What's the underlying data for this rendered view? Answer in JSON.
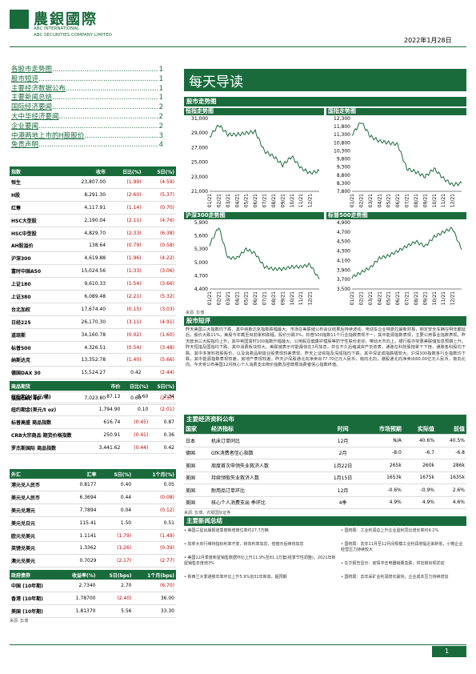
{
  "header": {
    "logo_cn": "農銀國際",
    "logo_en1": "ABC INTERNATIONAL",
    "logo_en2": "ABC SECURITIES COMPANY LIMITED",
    "date": "2022年1月28日"
  },
  "toc": [
    {
      "label": "各股市走势图",
      "page": "1"
    },
    {
      "label": "股市短评",
      "page": "1"
    },
    {
      "label": "主要经济数据公布",
      "page": "1"
    },
    {
      "label": "主要新闻总结",
      "page": "1"
    },
    {
      "label": "国际经济要闻",
      "page": "2"
    },
    {
      "label": "大中华经济要闻",
      "page": "2"
    },
    {
      "label": "企业要闻",
      "page": "2"
    },
    {
      "label": "中港两地上市的H股股价",
      "page": "3"
    },
    {
      "label": "免责声明",
      "page": "4"
    }
  ],
  "index_table": {
    "headers": [
      "指数",
      "收市",
      "日比(%)",
      "5日(%)"
    ],
    "rows": [
      [
        "恒生",
        "23,807.00",
        "(1.99)",
        "(4.59)"
      ],
      [
        "H股",
        "8,291.30",
        "(2.60)",
        "(5.37)"
      ],
      [
        "红筹",
        "4,117.91",
        "(1.14)",
        "(0.70)"
      ],
      [
        "HSC大型股",
        "2,190.04",
        "(2.11)",
        "(4.76)"
      ],
      [
        "HSC中型股",
        "4,829.70",
        "(2.33)",
        "(6.38)"
      ],
      [
        "AH股溢价",
        "138.64",
        "(0.79)",
        "(0.58)"
      ],
      [
        "沪深300",
        "4,619.88",
        "(1.96)",
        "(4.22)"
      ],
      [
        "富时中国A50",
        "15,024.56",
        "(1.33)",
        "(3.06)"
      ],
      [
        "上证180",
        "9,610.33",
        "(1.54)",
        "(3.66)"
      ],
      [
        "上证380",
        "6,089.48",
        "(2.21)",
        "(5.32)"
      ],
      [
        "台北加权",
        "17,674.40",
        "(0.15)",
        "(3.03)"
      ],
      [
        "日经225",
        "26,170.30",
        "(3.11)",
        "(4.91)"
      ],
      [
        "道琼斯",
        "34,160.78",
        "(0.02)",
        "(1.60)"
      ],
      [
        "标普500",
        "4,326.51",
        "(0.54)",
        "(3.48)"
      ],
      [
        "纳斯达克",
        "13,352.78",
        "(1.40)",
        "(5.66)"
      ],
      [
        "德国DAX 30",
        "15,524.27",
        "0.42",
        "(2.44)"
      ],
      [
        "富时100",
        "7,554.31",
        "1.13",
        "(0.40)"
      ],
      [
        "法国CAC 40",
        "7,023.80",
        "0.60",
        "(2.37)"
      ]
    ]
  },
  "commodity_table": {
    "headers": [
      "商品期货",
      "市价",
      "日比(%)",
      "5日(%)"
    ],
    "rows": [
      [
        "纽约期油(美元/桶)",
        "87.13",
        "0.60",
        "2.34"
      ],
      [
        "纽约期金(美元/t oz)",
        "1,794.90",
        "0.10",
        "(2.01)"
      ],
      [
        "标普高盛 商品指数",
        "616.74",
        "(0.45)",
        "0.87"
      ],
      [
        "CRB大宗商品 期货价格指数",
        "250.91",
        "(0.41)",
        "0.36"
      ],
      [
        "罗杰斯国际 商品指数",
        "3,441.62",
        "(0.44)",
        "0.42"
      ]
    ]
  },
  "fx_table": {
    "headers": [
      "外汇",
      "汇率",
      "5日(%)",
      "1个月(%)"
    ],
    "rows": [
      [
        "港元兑人民币",
        "0.8177",
        "0.40",
        "0.05"
      ],
      [
        "美元兑人民币",
        "6.3694",
        "0.44",
        "(0.08)"
      ],
      [
        "美元兑港元",
        "7.7894",
        "0.04",
        "(0.12)"
      ],
      [
        "美元兑日元",
        "115.41",
        "1.50",
        "0.51"
      ],
      [
        "欧元兑美元",
        "1.1141",
        "(1.79)",
        "(1.49)"
      ],
      [
        "英镑兑美元",
        "1.3362",
        "(1.26)",
        "(0.39)"
      ],
      [
        "澳元兑美元",
        "0.7029",
        "(2.17)",
        "(2.77)"
      ]
    ]
  },
  "bond_table": {
    "headers": [
      "政府债券",
      "收益率(%)",
      "5日(bps)",
      "1个月(bps)"
    ],
    "rows": [
      [
        "中国 (10年期)",
        "2.7340",
        "2.70",
        "(6.70)"
      ],
      [
        "香港 (10年期)",
        "1.78700",
        "(2.40)",
        "36.00"
      ],
      [
        "美国 (10年期)",
        "1.81370",
        "5.56",
        "33.30"
      ]
    ],
    "source": "来源: 彭博"
  },
  "main": {
    "title": "每天导读",
    "charts_section": "股市走势图",
    "chart_source": "来源: 彭博",
    "commentary_section": "股市短评",
    "commentary": "昨天美国三大指数均下跌，其中纳斯达克指数跌幅最大。市场在美联储公布会议结果后持续波动，电动车企业特斯拉最新财报，制定安全车辆在明年都延后，股价大跌11%，美股今年截至目前累积跌幅，股价分跌3%，标普500指数11个行业指数表现不一，其中能源指数表现，主要公用事业指数表现。昨天欧洲三大股指均上升，其中英国富时100指数升幅最大。公用股及健康护理股等防守性股份走好，带动大市向上。银行股亦受惠美联储加息预期上升。昨天恒指及国指均下跌。其中消费板块较大。美联储表示可能最快在3月加息，并在不久后缩减资产负债表，通胀在科技股拖累下下挫，通胀各科股均下跌。其中多家科技股股价，以及消费品制造业股表现较差表现。昨天上证综指及深成指均下跌。其中深证成指跌幅较大。沪深300指数各行业指数均下跌，其中能源指数表现较差，房地产表现较差。昨天沪深股通北向净卖出77.70亿元人民币，南向北向；港股通北向净卖出60.00亿元人民币，南向北向。今天将公布美国12月核心个人消费支出物价指数及密歇根消费者信心指数终值。",
    "calendar_section": "主要经济资料公布",
    "calendar_headers": [
      "国家",
      "经济指标",
      "时间",
      "市场预期",
      "实际值",
      "前值"
    ],
    "calendar_rows": [
      [
        "日本",
        "机床订单同比",
        "12月",
        "N/A",
        "40.6%",
        "40.5%"
      ],
      [
        "德国",
        "GfK消费者信心指数",
        "2月",
        "-8.0",
        "-6.7",
        "-6.8"
      ],
      [
        "美国",
        "周度首次申领失业救济人数",
        "1月22日",
        "265k",
        "260k",
        "286k"
      ],
      [
        "美国",
        "持续领取失业救济人数",
        "1月15日",
        "1653k",
        "1675k",
        "1635k"
      ],
      [
        "美国",
        "耐用品订单环比",
        "12月",
        "-0.6%",
        "-0.9%",
        "2.6%"
      ],
      [
        "美国",
        "核心个人消费支出 季环比",
        "4季",
        "4.9%",
        "4.9%",
        "4.6%"
      ]
    ],
    "calendar_source": "来源: 彭博、农银国际证券",
    "news_section": "主要新闻总结",
    "news_left": [
      "• 美国三星出版报道季度新增岗位率约27.7万辆",
      "• 加拿大央行维持指标利率不变，转向利率加息，但暗示后续将加息",
      "• 美国12月季度新屋销售数据环比上升11.9%至81.1万套(经季节性调整)，2021年新屋销售年度增3%",
      "• 新西兰大季通胀年率环比上升5.9%创31年新高，超预期"
    ],
    "news_right": [
      "• 国统局：工业利润总上升企业盈利同比增长率约4.2%",
      "• 国统局：去年11月至12月间规模工业利润增幅近来新低，小微企业经营压力持续较大",
      "• 在华报告显示：疫情冲击电器销量急跌，供应链出现扰动",
      "• 国统局：去年采矿业利润增长最快，企业成本压力持续增加"
    ],
    "page_number": "1"
  },
  "charts": {
    "hsi": {
      "title": "恒指走势图",
      "yticks": [
        "31,000",
        "29,000",
        "27,000",
        "25,000",
        "23,000",
        "21,000"
      ],
      "xticks": [
        "01/21",
        "02/21",
        "03/21",
        "04/21",
        "05/21",
        "06/21",
        "07/21",
        "08/21",
        "09/21",
        "10/21",
        "11/21",
        "12/21"
      ]
    },
    "hscei": {
      "title": "国指走势图",
      "yticks": [
        "12,300",
        "11,800",
        "11,300",
        "10,800",
        "10,300",
        "9,800",
        "9,300",
        "8,800",
        "8,300",
        "7,800"
      ],
      "xticks": [
        "01/21",
        "02/21",
        "03/21",
        "04/21",
        "05/21",
        "06/21",
        "07/21",
        "08/21",
        "09/21",
        "10/21",
        "11/21",
        "12/21"
      ]
    },
    "csi300": {
      "title": "沪深300走势图",
      "yticks": [
        "5,900",
        "5,600",
        "5,300",
        "5,000",
        "4,700",
        "4,400"
      ],
      "xticks": [
        "01/21",
        "02/21",
        "03/21",
        "04/21",
        "05/21",
        "06/21",
        "07/21",
        "08/21",
        "09/21",
        "10/21",
        "11/21",
        "12/21"
      ]
    },
    "spx": {
      "title": "标普500走势图",
      "yticks": [
        "4,900",
        "4,700",
        "4,500",
        "4,300",
        "4,100",
        "3,900",
        "3,700",
        "3,500"
      ],
      "xticks": [
        "01/21",
        "02/21",
        "03/21",
        "04/21",
        "05/21",
        "06/21",
        "07/21",
        "08/21",
        "09/21",
        "10/21",
        "11/21",
        "12/21"
      ]
    }
  },
  "chart_data": [
    {
      "type": "line",
      "title": "恒指走势图",
      "x": [
        "01/21",
        "02/21",
        "03/21",
        "04/21",
        "05/21",
        "06/21",
        "07/21",
        "08/21",
        "09/21",
        "10/21",
        "11/21",
        "12/21",
        "01/22"
      ],
      "values": [
        28500,
        30100,
        28800,
        28800,
        29000,
        29200,
        26500,
        25800,
        24600,
        25800,
        24200,
        23500,
        23800
      ],
      "ylim": [
        21000,
        31000
      ]
    },
    {
      "type": "line",
      "title": "国指走势图",
      "x": [
        "01/21",
        "02/21",
        "03/21",
        "04/21",
        "05/21",
        "06/21",
        "07/21",
        "08/21",
        "09/21",
        "10/21",
        "11/21",
        "12/21",
        "01/22"
      ],
      "values": [
        11300,
        12100,
        11200,
        10900,
        10800,
        10700,
        9200,
        9000,
        8700,
        9200,
        8600,
        8200,
        8300
      ],
      "ylim": [
        7800,
        12300
      ]
    },
    {
      "type": "line",
      "title": "沪深300走势图",
      "x": [
        "01/21",
        "02/21",
        "03/21",
        "04/21",
        "05/21",
        "06/21",
        "07/21",
        "08/21",
        "09/21",
        "10/21",
        "11/21",
        "12/21",
        "01/22"
      ],
      "values": [
        5400,
        5800,
        5100,
        5100,
        5300,
        5200,
        4900,
        4850,
        4850,
        4900,
        4900,
        4950,
        4620
      ],
      "ylim": [
        4400,
        5900
      ]
    },
    {
      "type": "line",
      "title": "标普500走势图",
      "x": [
        "01/21",
        "02/21",
        "03/21",
        "04/21",
        "05/21",
        "06/21",
        "07/21",
        "08/21",
        "09/21",
        "10/21",
        "11/21",
        "12/21",
        "01/22"
      ],
      "values": [
        3750,
        3850,
        3950,
        4150,
        4200,
        4300,
        4400,
        4500,
        4400,
        4600,
        4700,
        4780,
        4330
      ],
      "ylim": [
        3500,
        4900
      ]
    }
  ]
}
